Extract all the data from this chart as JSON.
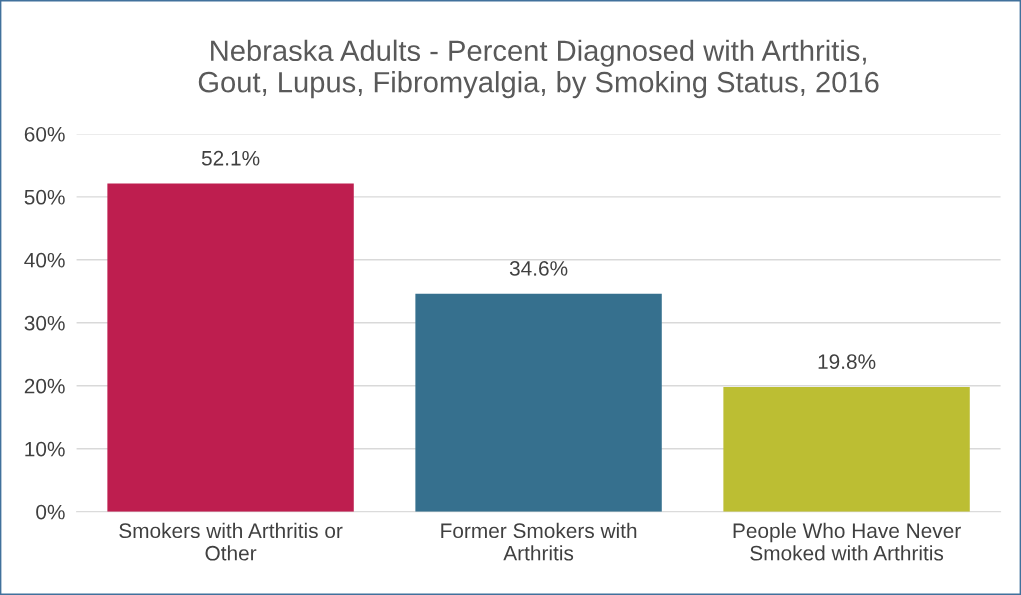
{
  "chart_data": {
    "type": "bar",
    "title": "Nebraska Adults - Percent Diagnosed with Arthritis,\nGout, Lupus, Fibromyalgia, by Smoking Status, 2016",
    "categories": [
      "Smokers with Arthritis or\nOther",
      "Former Smokers with\nArthritis",
      "People Who Have Never\nSmoked with Arthritis"
    ],
    "values": [
      52.1,
      34.6,
      19.8
    ],
    "colors": [
      "#be1e4f",
      "#36708e",
      "#bcbe33"
    ],
    "value_labels": [
      "52.1%",
      "34.6%",
      "19.8%"
    ],
    "ylim": [
      0,
      60
    ],
    "yticks": [
      {
        "value": 0,
        "label": "0%"
      },
      {
        "value": 10,
        "label": "10%"
      },
      {
        "value": 20,
        "label": "20%"
      },
      {
        "value": 30,
        "label": "30%"
      },
      {
        "value": 40,
        "label": "40%"
      },
      {
        "value": 50,
        "label": "50%"
      },
      {
        "value": 60,
        "label": "60%"
      }
    ],
    "grid": "y"
  }
}
